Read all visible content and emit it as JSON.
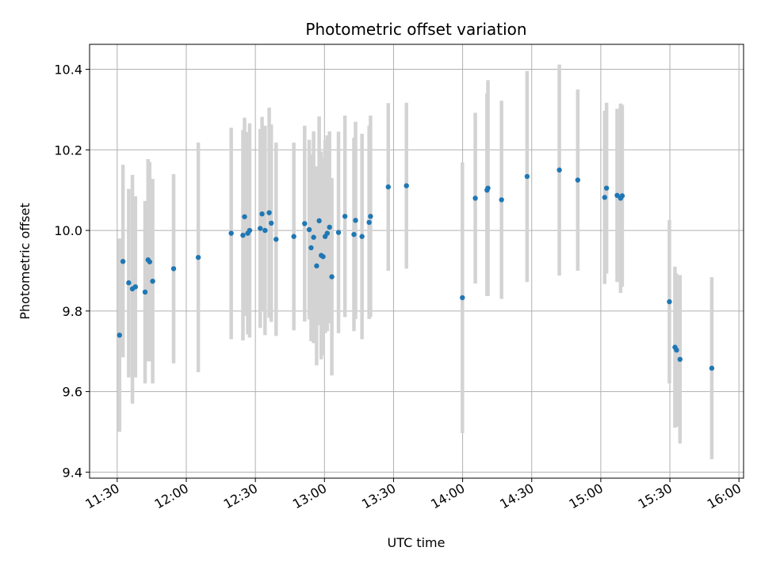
{
  "chart_data": {
    "type": "scatter",
    "title": "Photometric offset variation",
    "xlabel": "UTC time",
    "ylabel": "Photometric offset",
    "xlim_minutes": [
      678,
      962
    ],
    "ylim": [
      9.385,
      10.462
    ],
    "grid": true,
    "x_ticks": [
      {
        "minutes": 690,
        "label": "11:30"
      },
      {
        "minutes": 720,
        "label": "12:00"
      },
      {
        "minutes": 750,
        "label": "12:30"
      },
      {
        "minutes": 780,
        "label": "13:00"
      },
      {
        "minutes": 810,
        "label": "13:30"
      },
      {
        "minutes": 840,
        "label": "14:00"
      },
      {
        "minutes": 870,
        "label": "14:30"
      },
      {
        "minutes": 900,
        "label": "15:00"
      },
      {
        "minutes": 930,
        "label": "15:30"
      },
      {
        "minutes": 960,
        "label": "16:00"
      }
    ],
    "y_ticks": [
      9.4,
      9.6,
      9.8,
      10.0,
      10.2,
      10.4
    ],
    "series": [
      {
        "name": "offset",
        "marker_color": "#1f77b4",
        "errorbar_color": "#d3d3d3",
        "points": [
          {
            "x": 691.0,
            "y": 9.74,
            "lo": 9.5,
            "hi": 9.98
          },
          {
            "x": 692.5,
            "y": 9.923,
            "lo": 9.685,
            "hi": 10.163
          },
          {
            "x": 695.0,
            "y": 9.87,
            "lo": 9.635,
            "hi": 10.103
          },
          {
            "x": 696.6,
            "y": 9.855,
            "lo": 9.57,
            "hi": 10.138
          },
          {
            "x": 697.9,
            "y": 9.86,
            "lo": 9.635,
            "hi": 10.085
          },
          {
            "x": 702.1,
            "y": 9.847,
            "lo": 9.62,
            "hi": 10.073
          },
          {
            "x": 703.4,
            "y": 9.927,
            "lo": 9.675,
            "hi": 10.177
          },
          {
            "x": 704.1,
            "y": 9.922,
            "lo": 9.675,
            "hi": 10.17
          },
          {
            "x": 705.4,
            "y": 9.874,
            "lo": 9.62,
            "hi": 10.128
          },
          {
            "x": 714.5,
            "y": 9.905,
            "lo": 9.67,
            "hi": 10.14
          },
          {
            "x": 725.2,
            "y": 9.933,
            "lo": 9.648,
            "hi": 10.218
          },
          {
            "x": 739.5,
            "y": 9.993,
            "lo": 9.73,
            "hi": 10.255
          },
          {
            "x": 744.6,
            "y": 9.988,
            "lo": 9.727,
            "hi": 10.249
          },
          {
            "x": 745.3,
            "y": 10.034,
            "lo": 9.788,
            "hi": 10.28
          },
          {
            "x": 746.7,
            "y": 9.993,
            "lo": 9.742,
            "hi": 10.244
          },
          {
            "x": 747.5,
            "y": 10.0,
            "lo": 9.734,
            "hi": 10.266
          },
          {
            "x": 752.1,
            "y": 10.005,
            "lo": 9.758,
            "hi": 10.252
          },
          {
            "x": 752.9,
            "y": 10.041,
            "lo": 9.8,
            "hi": 10.282
          },
          {
            "x": 754.2,
            "y": 10.0,
            "lo": 9.74,
            "hi": 10.26
          },
          {
            "x": 756.0,
            "y": 10.044,
            "lo": 9.783,
            "hi": 10.305
          },
          {
            "x": 756.9,
            "y": 10.018,
            "lo": 9.773,
            "hi": 10.263
          },
          {
            "x": 759.0,
            "y": 9.978,
            "lo": 9.738,
            "hi": 10.218
          },
          {
            "x": 766.7,
            "y": 9.985,
            "lo": 9.752,
            "hi": 10.218
          },
          {
            "x": 771.4,
            "y": 10.017,
            "lo": 9.774,
            "hi": 10.26
          },
          {
            "x": 773.4,
            "y": 10.002,
            "lo": 9.779,
            "hi": 10.225
          },
          {
            "x": 774.2,
            "y": 9.957,
            "lo": 9.725,
            "hi": 10.189
          },
          {
            "x": 775.3,
            "y": 9.983,
            "lo": 9.72,
            "hi": 10.246
          },
          {
            "x": 776.6,
            "y": 9.912,
            "lo": 9.665,
            "hi": 10.159
          },
          {
            "x": 777.7,
            "y": 10.024,
            "lo": 9.765,
            "hi": 10.283
          },
          {
            "x": 778.6,
            "y": 9.938,
            "lo": 9.68,
            "hi": 10.196
          },
          {
            "x": 779.4,
            "y": 9.935,
            "lo": 9.69,
            "hi": 10.18
          },
          {
            "x": 780.3,
            "y": 9.985,
            "lo": 9.745,
            "hi": 10.225
          },
          {
            "x": 781.2,
            "y": 9.993,
            "lo": 9.75,
            "hi": 10.236
          },
          {
            "x": 782.2,
            "y": 10.008,
            "lo": 9.77,
            "hi": 10.246
          },
          {
            "x": 783.2,
            "y": 9.885,
            "lo": 9.64,
            "hi": 10.13
          },
          {
            "x": 786.1,
            "y": 9.995,
            "lo": 9.745,
            "hi": 10.245
          },
          {
            "x": 788.9,
            "y": 10.035,
            "lo": 9.785,
            "hi": 10.285
          },
          {
            "x": 792.8,
            "y": 9.99,
            "lo": 9.75,
            "hi": 10.23
          },
          {
            "x": 793.5,
            "y": 10.025,
            "lo": 9.78,
            "hi": 10.27
          },
          {
            "x": 796.3,
            "y": 9.985,
            "lo": 9.73,
            "hi": 10.24
          },
          {
            "x": 799.4,
            "y": 10.02,
            "lo": 9.78,
            "hi": 10.26
          },
          {
            "x": 800.0,
            "y": 10.035,
            "lo": 9.785,
            "hi": 10.285
          },
          {
            "x": 807.7,
            "y": 10.108,
            "lo": 9.9,
            "hi": 10.316
          },
          {
            "x": 815.6,
            "y": 10.111,
            "lo": 9.905,
            "hi": 10.317
          },
          {
            "x": 839.9,
            "y": 9.833,
            "lo": 9.497,
            "hi": 10.169
          },
          {
            "x": 845.5,
            "y": 10.08,
            "lo": 9.868,
            "hi": 10.292
          },
          {
            "x": 850.6,
            "y": 10.1,
            "lo": 9.837,
            "hi": 10.34
          },
          {
            "x": 851.0,
            "y": 10.105,
            "lo": 9.837,
            "hi": 10.373
          },
          {
            "x": 856.9,
            "y": 10.076,
            "lo": 9.83,
            "hi": 10.322
          },
          {
            "x": 868.0,
            "y": 10.134,
            "lo": 9.872,
            "hi": 10.396
          },
          {
            "x": 882.0,
            "y": 10.15,
            "lo": 9.888,
            "hi": 10.412
          },
          {
            "x": 890.0,
            "y": 10.125,
            "lo": 9.9,
            "hi": 10.35
          },
          {
            "x": 901.7,
            "y": 10.082,
            "lo": 9.867,
            "hi": 10.297
          },
          {
            "x": 902.5,
            "y": 10.105,
            "lo": 9.893,
            "hi": 10.317
          },
          {
            "x": 907.1,
            "y": 10.087,
            "lo": 9.872,
            "hi": 10.302
          },
          {
            "x": 908.6,
            "y": 10.08,
            "lo": 9.845,
            "hi": 10.315
          },
          {
            "x": 909.3,
            "y": 10.086,
            "lo": 9.86,
            "hi": 10.312
          },
          {
            "x": 929.8,
            "y": 9.823,
            "lo": 9.62,
            "hi": 10.026
          },
          {
            "x": 932.2,
            "y": 9.71,
            "lo": 9.51,
            "hi": 9.91
          },
          {
            "x": 932.9,
            "y": 9.703,
            "lo": 9.513,
            "hi": 9.893
          },
          {
            "x": 934.4,
            "y": 9.68,
            "lo": 9.471,
            "hi": 9.889
          },
          {
            "x": 948.2,
            "y": 9.658,
            "lo": 9.432,
            "hi": 9.884
          }
        ]
      }
    ]
  }
}
